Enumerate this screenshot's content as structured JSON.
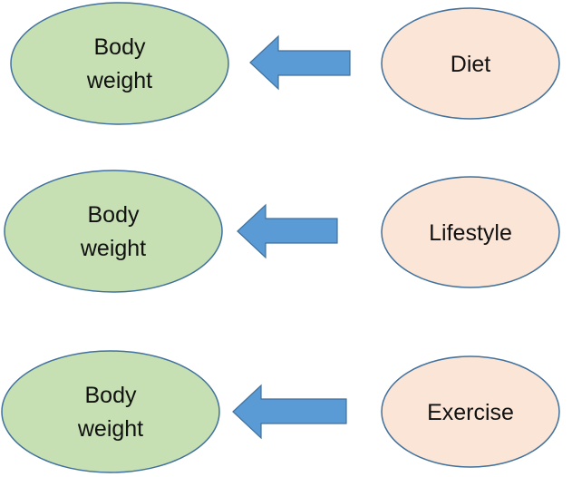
{
  "rows": [
    {
      "target_line1": "Body",
      "target_line2": "weight",
      "source": "Diet"
    },
    {
      "target_line1": "Body",
      "target_line2": "weight",
      "source": "Lifestyle"
    },
    {
      "target_line1": "Body",
      "target_line2": "weight",
      "source": "Exercise"
    }
  ],
  "colors": {
    "target_fill": "#c6e0b4",
    "target_stroke": "#41719c",
    "source_fill": "#fbe5d6",
    "source_stroke": "#41719c",
    "arrow_fill": "#5b9bd5",
    "arrow_stroke": "#41719c",
    "text": "#111111"
  }
}
